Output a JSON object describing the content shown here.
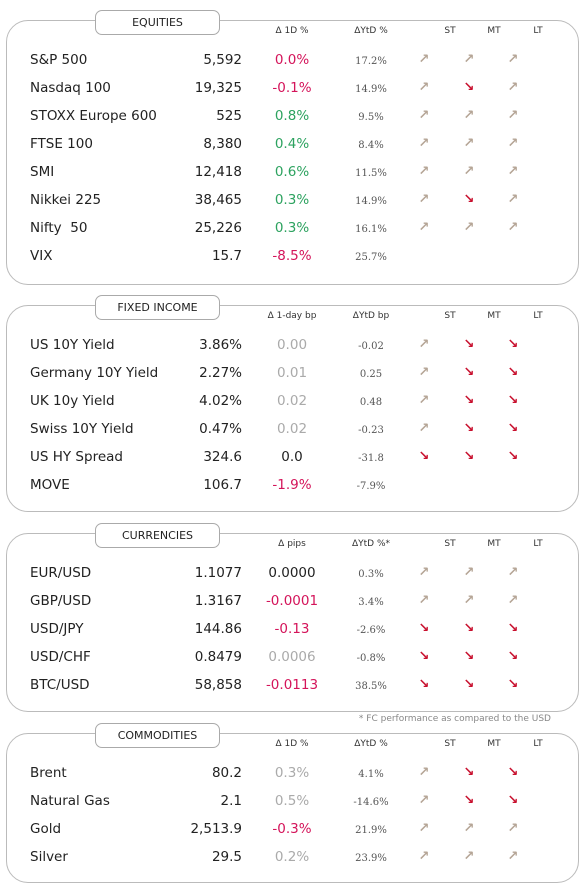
{
  "arrow_colors": {
    "↗": "#b5a596",
    "↘": "#c8102e"
  },
  "sections": [
    {
      "title": "EQUITIES",
      "headers": [
        "Δ 1D %",
        "ΔYtD %",
        "ST",
        "MT",
        "LT"
      ],
      "rows": [
        [
          "S&P 500",
          "5,592",
          "0.0%",
          "17.2%",
          "↗",
          "↗",
          "↗"
        ],
        [
          "Nasdaq 100",
          "19,325",
          "-0.1%",
          "14.9%",
          "↗",
          "↘",
          "↗"
        ],
        [
          "STOXX Europe 600",
          "525",
          "0.8%",
          "9.5%",
          "↗",
          "↗",
          "↗"
        ],
        [
          "FTSE 100",
          "8,380",
          "0.4%",
          "8.4%",
          "↗",
          "↗",
          "↗"
        ],
        [
          "SMI",
          "12,418",
          "0.6%",
          "11.5%",
          "↗",
          "↗",
          "↗"
        ],
        [
          "Nikkei 225",
          "38,465",
          "0.3%",
          "14.9%",
          "↗",
          "↘",
          "↗"
        ],
        [
          "Nifty  50",
          "25,226",
          "0.3%",
          "16.1%",
          "↗",
          "↗",
          "↗"
        ],
        [
          "VIX",
          "15.7",
          "-8.5%",
          "25.7%",
          null,
          null,
          null
        ]
      ],
      "change_colors": [
        "#d4145a",
        "#d4145a",
        "#2ca25f",
        "#2ca25f",
        "#2ca25f",
        "#2ca25f",
        "#2ca25f",
        "#d4145a"
      ]
    },
    {
      "title": "FIXED INCOME",
      "headers": [
        "Δ 1-day bp",
        "ΔYtD bp",
        "ST",
        "MT",
        "LT"
      ],
      "rows": [
        [
          "US 10Y Yield",
          "3.86%",
          "0.00",
          "-0.02",
          "↗",
          "↘",
          "↘"
        ],
        [
          "Germany 10Y Yield",
          "2.27%",
          "0.01",
          "0.25",
          "↗",
          "↘",
          "↘"
        ],
        [
          "UK 10y Yield",
          "4.02%",
          "0.02",
          "0.48",
          "↗",
          "↘",
          "↘"
        ],
        [
          "Swiss 10Y Yield",
          "0.47%",
          "0.02",
          "-0.23",
          "↗",
          "↘",
          "↘"
        ],
        [
          "US HY Spread",
          "324.6",
          "0.0",
          "-31.8",
          "↘",
          "↘",
          "↘"
        ],
        [
          "MOVE",
          "106.7",
          "-1.9%",
          "-7.9%",
          null,
          null,
          null
        ]
      ],
      "change_colors": [
        "#aaaaaa",
        "#aaaaaa",
        "#aaaaaa",
        "#aaaaaa",
        "#222222",
        "#d4145a"
      ]
    },
    {
      "title": "CURRENCIES",
      "headers": [
        "Δ pips",
        "ΔYtD %*",
        "ST",
        "MT",
        "LT"
      ],
      "rows": [
        [
          "EUR/USD",
          "1.1077",
          "0.0000",
          "0.3%",
          "↗",
          "↗",
          "↗"
        ],
        [
          "GBP/USD",
          "1.3167",
          "-0.0001",
          "3.4%",
          "↗",
          "↗",
          "↗"
        ],
        [
          "USD/JPY",
          "144.86",
          "-0.13",
          "-2.6%",
          "↘",
          "↘",
          "↘"
        ],
        [
          "USD/CHF",
          "0.8479",
          "0.0006",
          "-0.8%",
          "↘",
          "↘",
          "↘"
        ],
        [
          "BTC/USD",
          "58,858",
          "-0.0113",
          "38.5%",
          "↘",
          "↘",
          "↘"
        ]
      ],
      "change_colors": [
        "#222222",
        "#d4145a",
        "#d4145a",
        "#aaaaaa",
        "#d4145a"
      ],
      "footnote": "* FC performance as compared to the USD"
    },
    {
      "title": "COMMODITIES",
      "headers": [
        "Δ 1D %",
        "ΔYtD %",
        "ST",
        "MT",
        "LT"
      ],
      "rows": [
        [
          "Brent",
          "80.2",
          "0.3%",
          "4.1%",
          "↗",
          "↘",
          "↘"
        ],
        [
          "Natural Gas",
          "2.1",
          "0.5%",
          "-14.6%",
          "↗",
          "↘",
          "↘"
        ],
        [
          "Gold",
          "2,513.9",
          "-0.3%",
          "21.9%",
          "↗",
          "↗",
          "↗"
        ],
        [
          "Silver",
          "29.5",
          "0.2%",
          "23.9%",
          "↗",
          "↗",
          "↗"
        ]
      ],
      "change_colors": [
        "#aaaaaa",
        "#aaaaaa",
        "#d4145a",
        "#aaaaaa"
      ]
    }
  ]
}
